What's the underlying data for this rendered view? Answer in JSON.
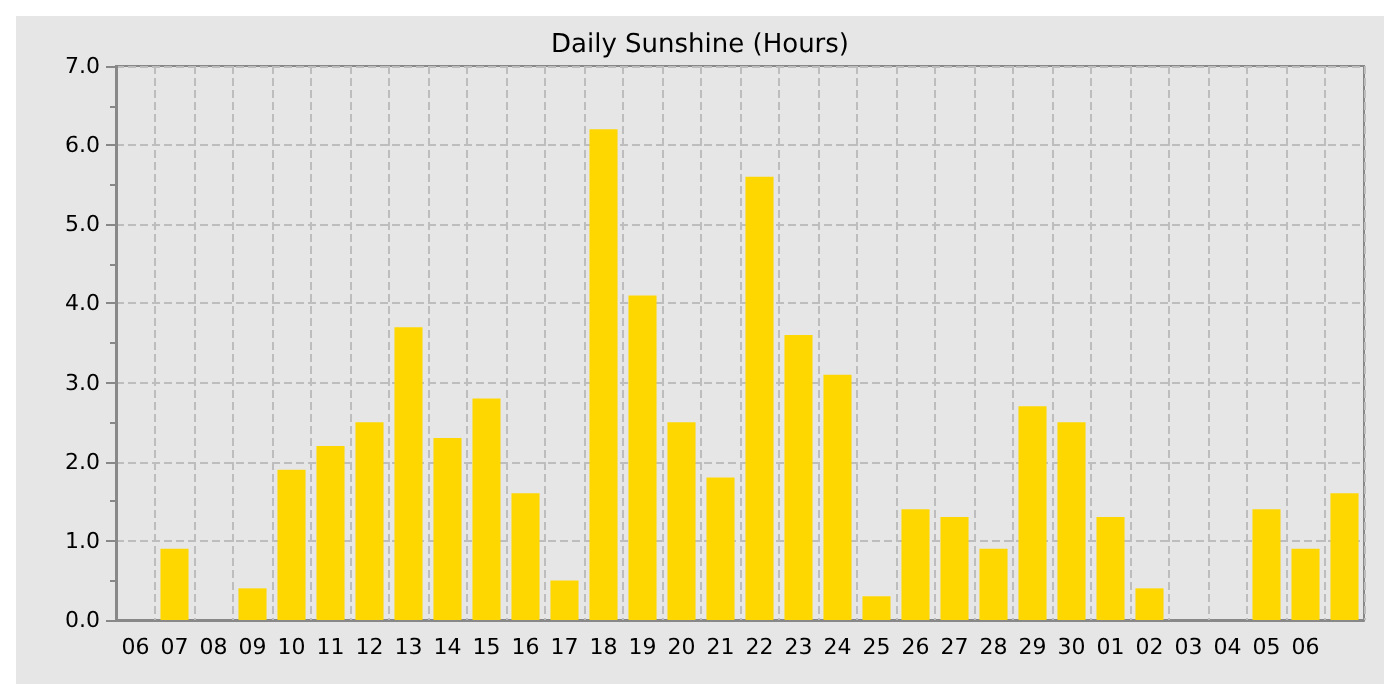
{
  "chart_data": {
    "type": "bar",
    "title": "Daily Sunshine (Hours)",
    "categories": [
      "06",
      "07",
      "08",
      "09",
      "10",
      "11",
      "12",
      "13",
      "14",
      "15",
      "16",
      "17",
      "18",
      "19",
      "20",
      "21",
      "22",
      "23",
      "24",
      "25",
      "26",
      "27",
      "28",
      "29",
      "30",
      "01",
      "02",
      "03",
      "04",
      "05",
      "06",
      null
    ],
    "values": [
      0,
      0.9,
      0,
      0.4,
      1.9,
      2.2,
      2.5,
      3.7,
      2.3,
      2.8,
      1.6,
      0.5,
      6.2,
      4.1,
      2.5,
      1.8,
      5.6,
      3.6,
      3.1,
      0.3,
      1.4,
      1.3,
      0.9,
      2.7,
      2.5,
      1.3,
      0.4,
      0,
      0,
      1.4,
      0.9,
      1.6
    ],
    "color": "#ffd700",
    "ylim": [
      0,
      7
    ],
    "yticks": [
      {
        "value": 0,
        "label": "0.0"
      },
      {
        "value": 1,
        "label": "1.0"
      },
      {
        "value": 2,
        "label": "2.0"
      },
      {
        "value": 3,
        "label": "3.0"
      },
      {
        "value": 4,
        "label": "4.0"
      },
      {
        "value": 5,
        "label": "5.0"
      },
      {
        "value": 6,
        "label": "6.0"
      },
      {
        "value": 7,
        "label": "7.0"
      }
    ],
    "grid": true
  }
}
